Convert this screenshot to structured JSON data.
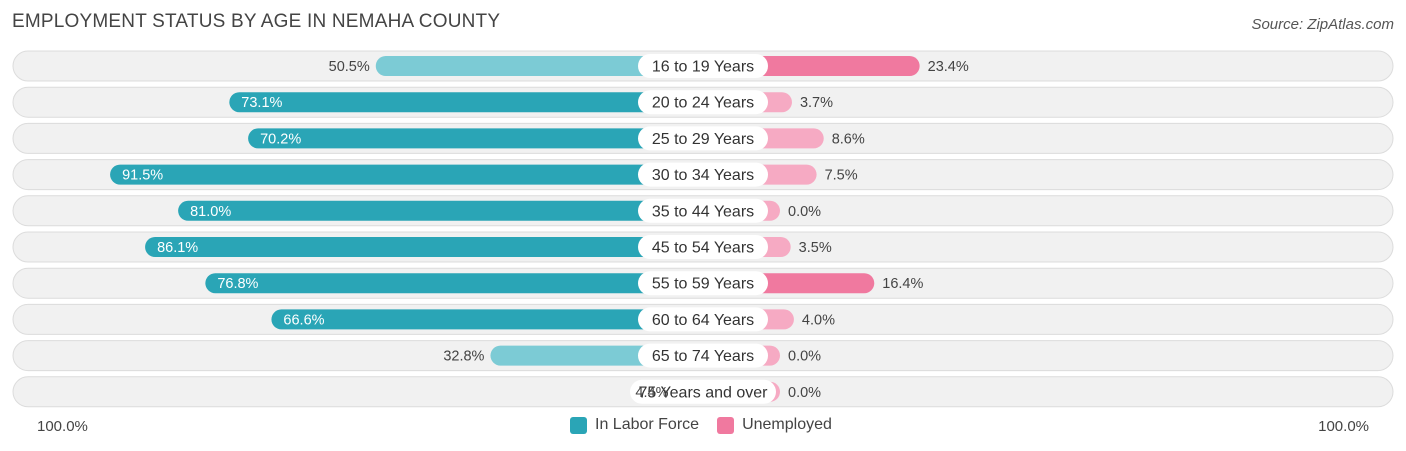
{
  "title": "EMPLOYMENT STATUS BY AGE IN NEMAHA COUNTY",
  "source": "Source: ZipAtlas.com",
  "colors": {
    "labor_force": "#2aa5b6",
    "labor_force_light": "#7ccbd5",
    "unemployed": "#f0799f",
    "unemployed_light": "#f6aac3",
    "row_bg": "#f1f1f1",
    "row_border": "#dcdcdc"
  },
  "axis": {
    "left_label": "100.0%",
    "right_label": "100.0%"
  },
  "legend": [
    {
      "label": "In Labor Force",
      "color": "#2aa5b6"
    },
    {
      "label": "Unemployed",
      "color": "#f0799f"
    }
  ],
  "chart_data": {
    "type": "bar",
    "orientation": "horizontal-diverging",
    "title": "EMPLOYMENT STATUS BY AGE IN NEMAHA COUNTY",
    "categories": [
      "16 to 19 Years",
      "20 to 24 Years",
      "25 to 29 Years",
      "30 to 34 Years",
      "35 to 44 Years",
      "45 to 54 Years",
      "55 to 59 Years",
      "60 to 64 Years",
      "65 to 74 Years",
      "75 Years and over"
    ],
    "series": [
      {
        "name": "In Labor Force",
        "side": "left",
        "values": [
          50.5,
          73.1,
          70.2,
          91.5,
          81.0,
          86.1,
          76.8,
          66.6,
          32.8,
          4.4
        ],
        "labels": [
          "50.5%",
          "73.1%",
          "70.2%",
          "91.5%",
          "81.0%",
          "86.1%",
          "76.8%",
          "66.6%",
          "32.8%",
          "4.4%"
        ]
      },
      {
        "name": "Unemployed",
        "side": "right",
        "values": [
          23.4,
          3.7,
          8.6,
          7.5,
          0.0,
          3.5,
          16.4,
          4.0,
          0.0,
          0.0
        ],
        "labels": [
          "23.4%",
          "3.7%",
          "8.6%",
          "7.5%",
          "0.0%",
          "3.5%",
          "16.4%",
          "4.0%",
          "0.0%",
          "0.0%"
        ]
      }
    ],
    "xlim": [
      0,
      100
    ],
    "xlabel_left": "100.0%",
    "xlabel_right": "100.0%",
    "legend_position": "bottom-center"
  }
}
